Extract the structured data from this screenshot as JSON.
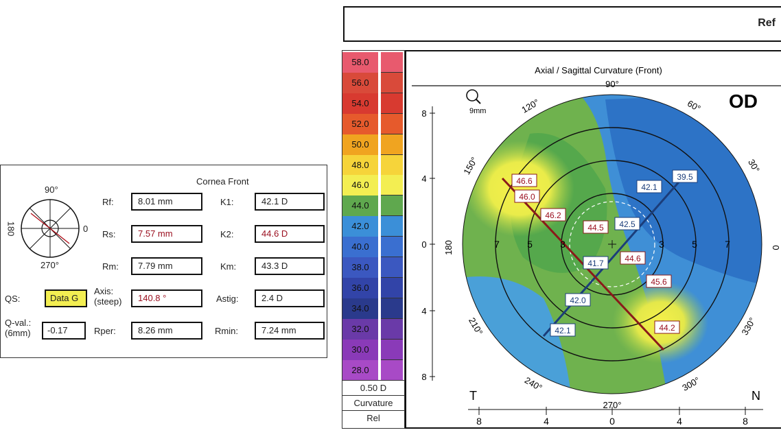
{
  "header": {
    "title": "Ref"
  },
  "info_panel": {
    "title": "Cornea Front",
    "compass": {
      "top": "90°",
      "right": "0",
      "left": "180",
      "bottom": "270°"
    },
    "rows": [
      {
        "label": "Rf:",
        "value": "8.01 mm",
        "label2": "K1:",
        "value2": "42.1 D"
      },
      {
        "label": "Rs:",
        "value": "7.57 mm",
        "label2": "K2:",
        "value2": "44.6 D"
      },
      {
        "label": "Rm:",
        "value": "7.79 mm",
        "label2": "Km:",
        "value2": "43.3 D"
      },
      {
        "label": "Axis:\n(steep)",
        "value": "140.8 °",
        "label2": "Astig:",
        "value2": "2.4 D"
      },
      {
        "label": "Rper:",
        "value": "8.26 mm",
        "label2": "Rmin:",
        "value2": "7.24 mm"
      }
    ],
    "qs_label": "QS:",
    "qs_value": "Data G",
    "qval_label": "Q-val.:\n(6mm)",
    "qval_value": "-0.17",
    "axis_label_line1": "Axis:",
    "axis_label_line2": "(steep)",
    "qval_label_line1": "Q-val.:",
    "qval_label_line2": "(6mm)"
  },
  "scale": {
    "values": [
      "58.0",
      "56.0",
      "54.0",
      "52.0",
      "50.0",
      "48.0",
      "46.0",
      "44.0",
      "42.0",
      "40.0",
      "38.0",
      "36.0",
      "34.0",
      "32.0",
      "30.0",
      "28.0"
    ],
    "colors": [
      "#e85a6e",
      "#d94a3a",
      "#d83a30",
      "#e65a2c",
      "#f0a420",
      "#f6d43a",
      "#f3ee52",
      "#5fa84e",
      "#3b8fd8",
      "#3a6fd0",
      "#3b58c0",
      "#3244a8",
      "#2a3a8c",
      "#6a3aa8",
      "#8a3ab8",
      "#a84ac6"
    ],
    "step": "0.50 D",
    "mode": "Curvature",
    "ref": "Rel"
  },
  "map": {
    "title": "Axial / Sagittal Curvature (Front)",
    "eye": "OD",
    "zoom": "9mm",
    "temporal": "T",
    "nasal": "N",
    "angles": [
      "90°",
      "60°",
      "30°",
      "0",
      "330°",
      "300°",
      "270°",
      "240°",
      "210°",
      "180",
      "150°",
      "120°"
    ],
    "y_ticks": [
      "8",
      "4",
      "0",
      "4",
      "8"
    ],
    "x_ticks": [
      "8",
      "4",
      "0",
      "4",
      "8"
    ],
    "ring_labels": [
      "7",
      "5",
      "3",
      "3",
      "5",
      "7"
    ],
    "flat_readings": [
      "39.5",
      "42.1",
      "42.5",
      "41.7",
      "42.0",
      "42.1"
    ],
    "steep_readings": [
      "46.6",
      "46.0",
      "46.2",
      "44.5",
      "44.6",
      "45.6",
      "44.2"
    ]
  }
}
